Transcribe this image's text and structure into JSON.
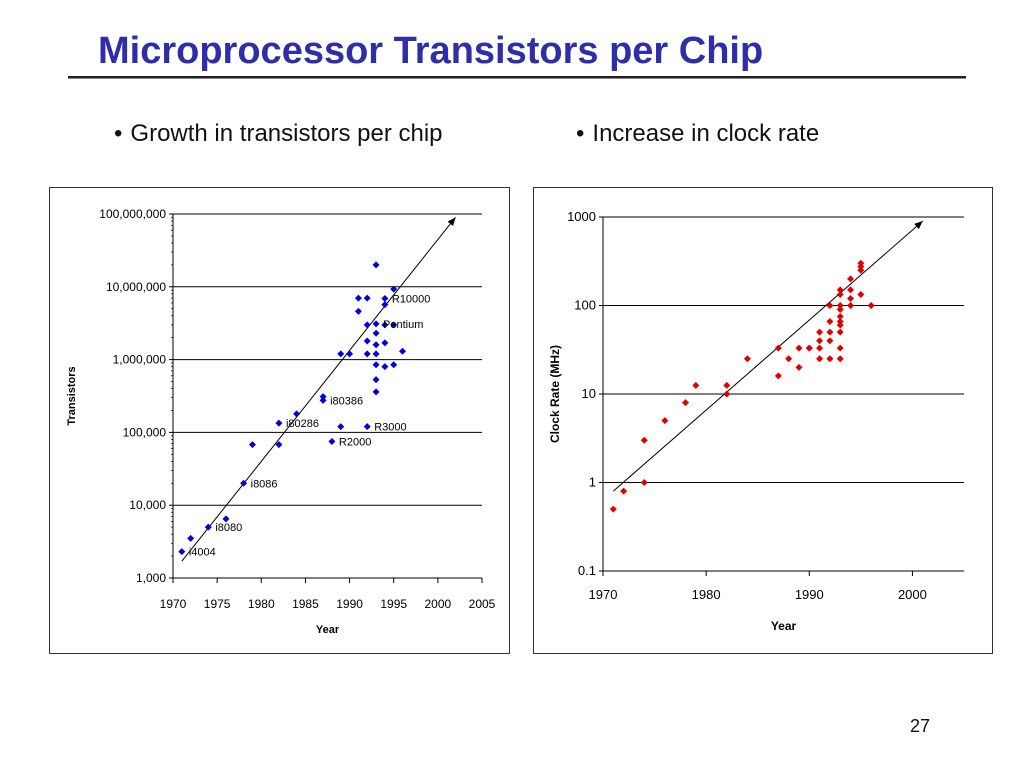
{
  "slide": {
    "title": "Microprocessor Transistors per Chip",
    "bullets": [
      "Growth in transistors per chip",
      "Increase in clock rate"
    ],
    "bullet_glyph": "•",
    "page_number": "27"
  },
  "colors": {
    "title": "#2e2ea8",
    "series_transistors": "#0000dd",
    "series_clock": "#e00000",
    "trend": "#000000"
  },
  "chart_data": [
    {
      "type": "scatter",
      "xlabel": "Year",
      "ylabel": "Transistors",
      "y_scale": "log",
      "xlim": [
        1970,
        2005
      ],
      "ylim": [
        1000,
        100000000
      ],
      "x_ticks": [
        1970,
        1975,
        1980,
        1985,
        1990,
        1995,
        2000,
        2005
      ],
      "x_tick_labels": [
        "1970",
        "1975",
        "1980",
        "1985",
        "1990",
        "1995",
        "2000",
        "2005"
      ],
      "y_ticks": [
        1000,
        10000,
        100000,
        1000000,
        10000000,
        100000000
      ],
      "y_tick_labels": [
        "1,000",
        "10,000",
        "100,000",
        "1,000,000",
        "10,000,000",
        "100,000,000"
      ],
      "grid": "horizontal",
      "series": [
        {
          "color": "#0000dd",
          "marker": "diamond",
          "points": [
            {
              "x": 1971,
              "y": 2300
            },
            {
              "x": 1972,
              "y": 3500
            },
            {
              "x": 1974,
              "y": 5000
            },
            {
              "x": 1976,
              "y": 6500
            },
            {
              "x": 1978,
              "y": 20000
            },
            {
              "x": 1979,
              "y": 68000
            },
            {
              "x": 1982,
              "y": 134000
            },
            {
              "x": 1982,
              "y": 68000
            },
            {
              "x": 1984,
              "y": 180000
            },
            {
              "x": 1987,
              "y": 275000
            },
            {
              "x": 1987,
              "y": 310000
            },
            {
              "x": 1988,
              "y": 75000
            },
            {
              "x": 1989,
              "y": 120000
            },
            {
              "x": 1989,
              "y": 1200000
            },
            {
              "x": 1990,
              "y": 1200000
            },
            {
              "x": 1991,
              "y": 7000000
            },
            {
              "x": 1991,
              "y": 4600000
            },
            {
              "x": 1992,
              "y": 7000000
            },
            {
              "x": 1992,
              "y": 3000000
            },
            {
              "x": 1992,
              "y": 1800000
            },
            {
              "x": 1992,
              "y": 1200000
            },
            {
              "x": 1992,
              "y": 120000
            },
            {
              "x": 1993,
              "y": 20000000
            },
            {
              "x": 1993,
              "y": 3100000
            },
            {
              "x": 1993,
              "y": 2300000
            },
            {
              "x": 1993,
              "y": 1600000
            },
            {
              "x": 1993,
              "y": 1200000
            },
            {
              "x": 1993,
              "y": 850000
            },
            {
              "x": 1993,
              "y": 530000
            },
            {
              "x": 1993,
              "y": 360000
            },
            {
              "x": 1994,
              "y": 6900000
            },
            {
              "x": 1994,
              "y": 5700000
            },
            {
              "x": 1994,
              "y": 3000000
            },
            {
              "x": 1994,
              "y": 1700000
            },
            {
              "x": 1994,
              "y": 800000
            },
            {
              "x": 1995,
              "y": 9300000
            },
            {
              "x": 1995,
              "y": 3000000
            },
            {
              "x": 1995,
              "y": 850000
            },
            {
              "x": 1996,
              "y": 1300000
            }
          ]
        }
      ],
      "annotations": [
        {
          "text": "i4004",
          "x": 1971,
          "y": 2300
        },
        {
          "text": "i8080",
          "x": 1974,
          "y": 5000
        },
        {
          "text": "i8086",
          "x": 1978,
          "y": 20000
        },
        {
          "text": "i80286",
          "x": 1982,
          "y": 134000
        },
        {
          "text": "i80386",
          "x": 1987,
          "y": 275000
        },
        {
          "text": "R2000",
          "x": 1988,
          "y": 75000
        },
        {
          "text": "R3000",
          "x": 1992,
          "y": 120000
        },
        {
          "text": "Pentium",
          "x": 1993,
          "y": 3100000
        },
        {
          "text": "R10000",
          "x": 1994,
          "y": 6900000
        }
      ],
      "trend_line": {
        "from": {
          "x": 1971,
          "y": 1700
        },
        "to": {
          "x": 2002,
          "y": 90000000
        }
      }
    },
    {
      "type": "scatter",
      "xlabel": "Year",
      "ylabel": "Clock Rate (MHz)",
      "y_scale": "log",
      "xlim": [
        1970,
        2005
      ],
      "ylim": [
        0.1,
        1000
      ],
      "x_ticks": [
        1970,
        1980,
        1990,
        2000
      ],
      "x_tick_labels": [
        "1970",
        "1980",
        "1990",
        "2000"
      ],
      "y_ticks": [
        0.1,
        1,
        10,
        100,
        1000
      ],
      "y_tick_labels": [
        "0.1",
        "1",
        "10",
        "100",
        "1000"
      ],
      "grid": "horizontal",
      "series": [
        {
          "color": "#e00000",
          "marker": "diamond",
          "points": [
            {
              "x": 1971,
              "y": 0.5
            },
            {
              "x": 1972,
              "y": 0.8
            },
            {
              "x": 1974,
              "y": 1
            },
            {
              "x": 1974,
              "y": 3
            },
            {
              "x": 1976,
              "y": 5
            },
            {
              "x": 1978,
              "y": 8
            },
            {
              "x": 1979,
              "y": 12.5
            },
            {
              "x": 1982,
              "y": 10
            },
            {
              "x": 1982,
              "y": 12.5
            },
            {
              "x": 1984,
              "y": 25
            },
            {
              "x": 1987,
              "y": 16
            },
            {
              "x": 1987,
              "y": 33
            },
            {
              "x": 1988,
              "y": 25
            },
            {
              "x": 1989,
              "y": 20
            },
            {
              "x": 1989,
              "y": 33
            },
            {
              "x": 1990,
              "y": 33
            },
            {
              "x": 1990,
              "y": 33
            },
            {
              "x": 1991,
              "y": 25
            },
            {
              "x": 1991,
              "y": 33
            },
            {
              "x": 1991,
              "y": 40
            },
            {
              "x": 1991,
              "y": 50
            },
            {
              "x": 1992,
              "y": 25
            },
            {
              "x": 1992,
              "y": 40
            },
            {
              "x": 1992,
              "y": 50
            },
            {
              "x": 1992,
              "y": 66
            },
            {
              "x": 1992,
              "y": 100
            },
            {
              "x": 1993,
              "y": 25
            },
            {
              "x": 1993,
              "y": 33
            },
            {
              "x": 1993,
              "y": 50
            },
            {
              "x": 1993,
              "y": 60
            },
            {
              "x": 1993,
              "y": 66
            },
            {
              "x": 1993,
              "y": 75
            },
            {
              "x": 1993,
              "y": 90
            },
            {
              "x": 1993,
              "y": 100
            },
            {
              "x": 1993,
              "y": 133
            },
            {
              "x": 1993,
              "y": 150
            },
            {
              "x": 1994,
              "y": 100
            },
            {
              "x": 1994,
              "y": 120
            },
            {
              "x": 1994,
              "y": 150
            },
            {
              "x": 1994,
              "y": 200
            },
            {
              "x": 1995,
              "y": 133
            },
            {
              "x": 1995,
              "y": 250
            },
            {
              "x": 1995,
              "y": 275
            },
            {
              "x": 1995,
              "y": 300
            },
            {
              "x": 1996,
              "y": 100
            }
          ]
        }
      ],
      "trend_line": {
        "from": {
          "x": 1971,
          "y": 0.8
        },
        "to": {
          "x": 2001,
          "y": 900
        }
      }
    }
  ]
}
